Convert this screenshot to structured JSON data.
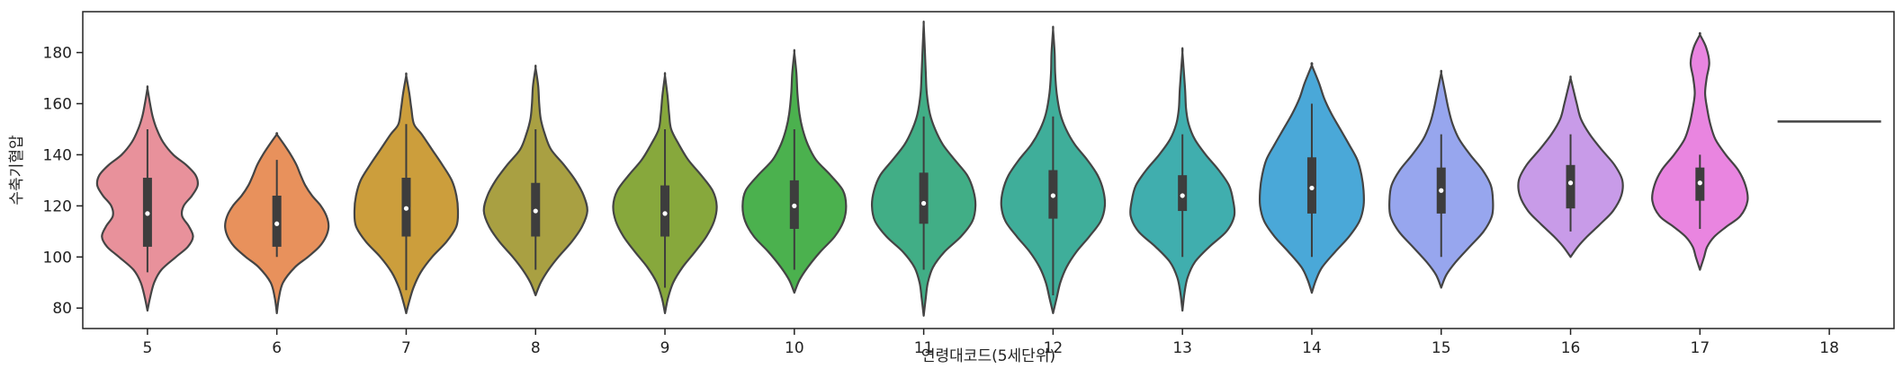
{
  "chart_data": {
    "type": "violin",
    "title": "",
    "xlabel": "연령대코드(5세단위)",
    "ylabel": "수축기혈압",
    "ylim": [
      72,
      196
    ],
    "yticks": [
      80,
      100,
      120,
      140,
      160,
      180
    ],
    "grid": false,
    "categories": [
      "5",
      "6",
      "7",
      "8",
      "9",
      "10",
      "11",
      "12",
      "13",
      "14",
      "15",
      "16",
      "17",
      "18"
    ],
    "colors": [
      "#e8919b",
      "#e8915c",
      "#cc9e3c",
      "#a9a042",
      "#87a83c",
      "#4bb14e",
      "#41ae86",
      "#3fae9a",
      "#40aeae",
      "#4aa8d8",
      "#97a6ee",
      "#c89be8",
      "#e985e0",
      "#e88fa8"
    ],
    "violins": [
      {
        "category": "5",
        "min": 94,
        "q1": 104,
        "median": 117,
        "q3": 131,
        "max": 150,
        "tail_low": 79,
        "tail_high": 166,
        "profile": [
          [
            79,
            0
          ],
          [
            84,
            0.05
          ],
          [
            90,
            0.13
          ],
          [
            95,
            0.27
          ],
          [
            100,
            0.55
          ],
          [
            104,
            0.78
          ],
          [
            108,
            0.88
          ],
          [
            112,
            0.8
          ],
          [
            116,
            0.67
          ],
          [
            120,
            0.7
          ],
          [
            124,
            0.86
          ],
          [
            128,
            0.97
          ],
          [
            132,
            0.93
          ],
          [
            136,
            0.75
          ],
          [
            140,
            0.5
          ],
          [
            145,
            0.3
          ],
          [
            150,
            0.18
          ],
          [
            155,
            0.1
          ],
          [
            160,
            0.05
          ],
          [
            166,
            0
          ]
        ]
      },
      {
        "category": "6",
        "min": 100,
        "q1": 104,
        "median": 113,
        "q3": 124,
        "max": 138,
        "tail_low": 78,
        "tail_high": 148,
        "profile": [
          [
            78,
            0
          ],
          [
            84,
            0.04
          ],
          [
            90,
            0.12
          ],
          [
            96,
            0.35
          ],
          [
            100,
            0.6
          ],
          [
            104,
            0.82
          ],
          [
            108,
            0.95
          ],
          [
            112,
            1.0
          ],
          [
            116,
            0.96
          ],
          [
            120,
            0.85
          ],
          [
            124,
            0.68
          ],
          [
            128,
            0.55
          ],
          [
            132,
            0.46
          ],
          [
            136,
            0.38
          ],
          [
            140,
            0.27
          ],
          [
            144,
            0.14
          ],
          [
            148,
            0
          ]
        ]
      },
      {
        "category": "7",
        "min": 87,
        "q1": 108,
        "median": 119,
        "q3": 131,
        "max": 152,
        "tail_low": 78,
        "tail_high": 171,
        "profile": [
          [
            78,
            0
          ],
          [
            82,
            0.05
          ],
          [
            88,
            0.14
          ],
          [
            94,
            0.28
          ],
          [
            100,
            0.5
          ],
          [
            106,
            0.78
          ],
          [
            112,
            0.97
          ],
          [
            118,
            1.0
          ],
          [
            124,
            0.97
          ],
          [
            130,
            0.88
          ],
          [
            136,
            0.7
          ],
          [
            142,
            0.5
          ],
          [
            148,
            0.3
          ],
          [
            152,
            0.15
          ],
          [
            158,
            0.1
          ],
          [
            164,
            0.06
          ],
          [
            171,
            0
          ]
        ]
      },
      {
        "category": "8",
        "min": 95,
        "q1": 108,
        "median": 118,
        "q3": 129,
        "max": 150,
        "tail_low": 85,
        "tail_high": 174,
        "profile": [
          [
            85,
            0
          ],
          [
            90,
            0.1
          ],
          [
            95,
            0.25
          ],
          [
            100,
            0.44
          ],
          [
            106,
            0.7
          ],
          [
            112,
            0.9
          ],
          [
            118,
            1.0
          ],
          [
            124,
            0.93
          ],
          [
            130,
            0.77
          ],
          [
            136,
            0.55
          ],
          [
            142,
            0.3
          ],
          [
            148,
            0.18
          ],
          [
            154,
            0.1
          ],
          [
            160,
            0.07
          ],
          [
            167,
            0.05
          ],
          [
            174,
            0
          ]
        ]
      },
      {
        "category": "9",
        "min": 88,
        "q1": 108,
        "median": 117,
        "q3": 128,
        "max": 150,
        "tail_low": 78,
        "tail_high": 171,
        "profile": [
          [
            78,
            0
          ],
          [
            84,
            0.06
          ],
          [
            90,
            0.16
          ],
          [
            96,
            0.34
          ],
          [
            102,
            0.58
          ],
          [
            108,
            0.8
          ],
          [
            114,
            0.95
          ],
          [
            120,
            1.0
          ],
          [
            126,
            0.92
          ],
          [
            132,
            0.7
          ],
          [
            138,
            0.45
          ],
          [
            144,
            0.27
          ],
          [
            150,
            0.12
          ],
          [
            156,
            0.08
          ],
          [
            163,
            0.05
          ],
          [
            171,
            0
          ]
        ]
      },
      {
        "category": "10",
        "min": 95,
        "q1": 111,
        "median": 120,
        "q3": 130,
        "max": 150,
        "tail_low": 86,
        "tail_high": 180,
        "profile": [
          [
            86,
            0
          ],
          [
            91,
            0.1
          ],
          [
            96,
            0.26
          ],
          [
            102,
            0.5
          ],
          [
            108,
            0.78
          ],
          [
            114,
            0.95
          ],
          [
            120,
            1.0
          ],
          [
            126,
            0.94
          ],
          [
            132,
            0.7
          ],
          [
            138,
            0.42
          ],
          [
            144,
            0.26
          ],
          [
            150,
            0.16
          ],
          [
            156,
            0.1
          ],
          [
            164,
            0.06
          ],
          [
            172,
            0.04
          ],
          [
            180,
            0
          ]
        ]
      },
      {
        "category": "11",
        "min": 95,
        "q1": 113,
        "median": 121,
        "q3": 133,
        "max": 155,
        "tail_low": 77,
        "tail_high": 191,
        "profile": [
          [
            77,
            0
          ],
          [
            84,
            0.04
          ],
          [
            90,
            0.08
          ],
          [
            96,
            0.18
          ],
          [
            102,
            0.4
          ],
          [
            108,
            0.72
          ],
          [
            114,
            0.94
          ],
          [
            120,
            1.0
          ],
          [
            126,
            0.96
          ],
          [
            132,
            0.84
          ],
          [
            138,
            0.6
          ],
          [
            144,
            0.37
          ],
          [
            150,
            0.22
          ],
          [
            156,
            0.12
          ],
          [
            164,
            0.06
          ],
          [
            172,
            0.04
          ],
          [
            182,
            0.02
          ],
          [
            191,
            0
          ]
        ]
      },
      {
        "category": "12",
        "min": 85,
        "q1": 115,
        "median": 124,
        "q3": 134,
        "max": 155,
        "tail_low": 78,
        "tail_high": 189,
        "profile": [
          [
            78,
            0
          ],
          [
            84,
            0.07
          ],
          [
            90,
            0.14
          ],
          [
            96,
            0.26
          ],
          [
            102,
            0.45
          ],
          [
            108,
            0.7
          ],
          [
            114,
            0.92
          ],
          [
            120,
            1.0
          ],
          [
            126,
            0.97
          ],
          [
            132,
            0.86
          ],
          [
            138,
            0.66
          ],
          [
            144,
            0.42
          ],
          [
            150,
            0.25
          ],
          [
            156,
            0.14
          ],
          [
            164,
            0.07
          ],
          [
            172,
            0.04
          ],
          [
            180,
            0.03
          ],
          [
            189,
            0
          ]
        ]
      },
      {
        "category": "13",
        "min": 100,
        "q1": 118,
        "median": 124,
        "q3": 132,
        "max": 148,
        "tail_low": 79,
        "tail_high": 180,
        "profile": [
          [
            79,
            0
          ],
          [
            86,
            0.04
          ],
          [
            92,
            0.1
          ],
          [
            98,
            0.24
          ],
          [
            104,
            0.52
          ],
          [
            110,
            0.85
          ],
          [
            116,
            1.0
          ],
          [
            122,
            0.98
          ],
          [
            128,
            0.9
          ],
          [
            134,
            0.7
          ],
          [
            140,
            0.45
          ],
          [
            146,
            0.24
          ],
          [
            152,
            0.12
          ],
          [
            158,
            0.07
          ],
          [
            166,
            0.05
          ],
          [
            180,
            0
          ]
        ]
      },
      {
        "category": "14",
        "min": 100,
        "q1": 117,
        "median": 127,
        "q3": 139,
        "max": 160,
        "tail_low": 86,
        "tail_high": 175,
        "profile": [
          [
            86,
            0
          ],
          [
            91,
            0.08
          ],
          [
            96,
            0.2
          ],
          [
            102,
            0.45
          ],
          [
            108,
            0.72
          ],
          [
            114,
            0.92
          ],
          [
            120,
            1.0
          ],
          [
            126,
            1.0
          ],
          [
            132,
            0.96
          ],
          [
            138,
            0.88
          ],
          [
            144,
            0.72
          ],
          [
            150,
            0.55
          ],
          [
            156,
            0.38
          ],
          [
            162,
            0.24
          ],
          [
            168,
            0.14
          ],
          [
            175,
            0
          ]
        ]
      },
      {
        "category": "15",
        "min": 100,
        "q1": 117,
        "median": 126,
        "q3": 135,
        "max": 148,
        "tail_low": 88,
        "tail_high": 172,
        "profile": [
          [
            88,
            0
          ],
          [
            93,
            0.1
          ],
          [
            98,
            0.28
          ],
          [
            104,
            0.55
          ],
          [
            110,
            0.82
          ],
          [
            116,
            0.98
          ],
          [
            122,
            1.0
          ],
          [
            128,
            0.96
          ],
          [
            134,
            0.8
          ],
          [
            140,
            0.56
          ],
          [
            146,
            0.35
          ],
          [
            152,
            0.22
          ],
          [
            158,
            0.14
          ],
          [
            165,
            0.07
          ],
          [
            172,
            0
          ]
        ]
      },
      {
        "category": "16",
        "min": 110,
        "q1": 119,
        "median": 129,
        "q3": 136,
        "max": 148,
        "tail_low": 100,
        "tail_high": 170,
        "profile": [
          [
            100,
            0
          ],
          [
            104,
            0.14
          ],
          [
            108,
            0.32
          ],
          [
            113,
            0.58
          ],
          [
            118,
            0.82
          ],
          [
            124,
            0.98
          ],
          [
            130,
            1.0
          ],
          [
            136,
            0.85
          ],
          [
            142,
            0.6
          ],
          [
            148,
            0.37
          ],
          [
            154,
            0.2
          ],
          [
            160,
            0.12
          ],
          [
            165,
            0.06
          ],
          [
            170,
            0
          ]
        ]
      },
      {
        "category": "17",
        "min": 111,
        "q1": 122,
        "median": 129,
        "q3": 135,
        "max": 140,
        "tail_low": 95,
        "tail_high": 187,
        "profile": [
          [
            95,
            0
          ],
          [
            100,
            0.08
          ],
          [
            104,
            0.14
          ],
          [
            108,
            0.28
          ],
          [
            112,
            0.52
          ],
          [
            116,
            0.78
          ],
          [
            122,
            0.92
          ],
          [
            128,
            0.88
          ],
          [
            134,
            0.74
          ],
          [
            140,
            0.5
          ],
          [
            146,
            0.3
          ],
          [
            152,
            0.2
          ],
          [
            158,
            0.14
          ],
          [
            164,
            0.1
          ],
          [
            170,
            0.13
          ],
          [
            176,
            0.18
          ],
          [
            182,
            0.12
          ],
          [
            187,
            0
          ]
        ]
      },
      {
        "category": "18",
        "single_value": 153
      }
    ]
  }
}
